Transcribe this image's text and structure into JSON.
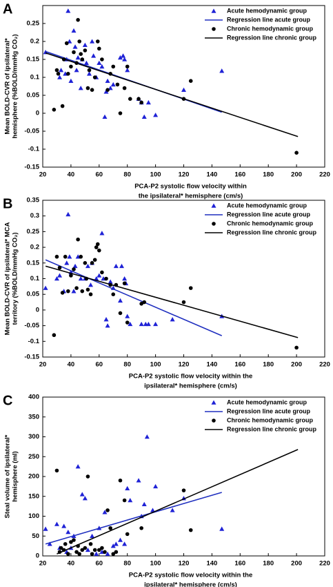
{
  "chart_data": [
    {
      "type": "scatter",
      "label": "A",
      "xlabel": [
        "PCA-P2 systolic  flow velocity within",
        "the ipsilateral*  hemisphere  (cm/s)"
      ],
      "ylabel": [
        "Mean BOLD-CVR of ipsilateral*",
        "hemisphere  (%BOLD/mmHg CO₂)"
      ],
      "xlim": [
        20,
        220
      ],
      "xticks": [
        20,
        40,
        60,
        80,
        100,
        120,
        140,
        160,
        180,
        200,
        220
      ],
      "ylim": [
        -0.15,
        0.3
      ],
      "yticks": [
        -0.15,
        -0.1,
        -0.05,
        0,
        0.05,
        0.1,
        0.15,
        0.2,
        0.25
      ],
      "legend": "upper right",
      "series": [
        {
          "name": "Acute hemodynamic group",
          "color": "#1f22d6",
          "marker": "triangle",
          "x": [
            22,
            32,
            33,
            36,
            37,
            38,
            39,
            40,
            42,
            43,
            44,
            45,
            47,
            48,
            50,
            51,
            53,
            55,
            56,
            58,
            60,
            62,
            64,
            65,
            66,
            68,
            70,
            75,
            77,
            78,
            80,
            88,
            90,
            92,
            95,
            100,
            120,
            147
          ],
          "values": [
            0.17,
            0.1,
            0.12,
            0.11,
            0.15,
            0.285,
            0.2,
            0.09,
            0.23,
            0.185,
            0.12,
            0.155,
            0.07,
            0.15,
            0.19,
            0.14,
            0.11,
            0.2,
            0.16,
            0.1,
            0.14,
            0.13,
            -0.01,
            0.06,
            0.09,
            0.07,
            0.08,
            0.155,
            0.16,
            0.15,
            0.12,
            0.04,
            0.03,
            -0.01,
            0.03,
            -0.005,
            0.065,
            0.118
          ]
        },
        {
          "name": "Regression line acute group",
          "color": "#1f2fbf",
          "type": "line",
          "x": [
            22,
            147
          ],
          "values": [
            0.172,
            0.003
          ]
        },
        {
          "name": "Chronic hemodynamic group",
          "color": "#000000",
          "marker": "circle",
          "x": [
            28,
            30,
            31,
            34,
            35,
            37,
            38,
            40,
            42,
            44,
            45,
            46,
            47,
            48,
            50,
            52,
            53,
            55,
            57,
            59,
            60,
            62,
            66,
            68,
            70,
            73,
            75,
            78,
            80,
            82,
            88,
            90,
            120,
            125,
            200
          ],
          "values": [
            0.01,
            0.12,
            0.11,
            0.02,
            0.15,
            0.195,
            0.11,
            0.13,
            0.17,
            0.14,
            0.26,
            0.2,
            0.165,
            0.15,
            0.175,
            0.07,
            0.12,
            0.065,
            0.1,
            0.2,
            0.18,
            0.15,
            0.065,
            0.11,
            0.13,
            0.08,
            0.0,
            0.07,
            0.13,
            0.04,
            0.04,
            0.03,
            0.04,
            0.09,
            -0.11
          ]
        },
        {
          "name": "Regression line chronic group",
          "color": "#000000",
          "type": "line",
          "x": [
            22,
            201
          ],
          "values": [
            0.168,
            -0.065
          ]
        }
      ]
    },
    {
      "type": "scatter",
      "label": "B",
      "xlabel": [
        "PCA-P2 systolic  flow velocity within the",
        "ipsilateral*  hemisphere  (cm/s)"
      ],
      "ylabel": [
        "Mean BOLD-CVR of ipsilateral*  MCA",
        "territory  (%BOLD/mmHg CO₂)"
      ],
      "xlim": [
        20,
        220
      ],
      "xticks": [
        20,
        40,
        60,
        80,
        100,
        120,
        140,
        160,
        180,
        200,
        220
      ],
      "ylim": [
        -0.15,
        0.35
      ],
      "yticks": [
        -0.15,
        -0.1,
        -0.05,
        0,
        0.05,
        0.1,
        0.15,
        0.2,
        0.25,
        0.3,
        0.35
      ],
      "legend": "upper right",
      "series": [
        {
          "name": "Acute hemodynamic group",
          "color": "#1f22d6",
          "marker": "triangle",
          "x": [
            22,
            30,
            32,
            35,
            37,
            38,
            39,
            40,
            42,
            43,
            45,
            47,
            50,
            52,
            54,
            55,
            58,
            60,
            62,
            63,
            65,
            66,
            68,
            70,
            72,
            75,
            76,
            78,
            79,
            80,
            82,
            90,
            93,
            95,
            100,
            112,
            147
          ],
          "values": [
            0.07,
            0.1,
            0.11,
            0.06,
            0.15,
            0.305,
            0.17,
            0.12,
            0.06,
            0.14,
            0.17,
            0.1,
            0.1,
            0.14,
            0.08,
            0.15,
            0.1,
            0.11,
            0.245,
            0.1,
            -0.03,
            -0.05,
            0.09,
            0.07,
            0.14,
            0.03,
            0.14,
            0.1,
            0.085,
            -0.02,
            -0.045,
            -0.045,
            -0.045,
            -0.045,
            -0.045,
            -0.03,
            -0.02
          ]
        },
        {
          "name": "Regression line acute group",
          "color": "#1f2fbf",
          "type": "line",
          "x": [
            22,
            147
          ],
          "values": [
            0.16,
            -0.082
          ]
        },
        {
          "name": "Chronic hemodynamic group",
          "color": "#000000",
          "marker": "circle",
          "x": [
            28,
            30,
            32,
            34,
            36,
            38,
            40,
            42,
            44,
            45,
            47,
            48,
            50,
            51,
            52,
            54,
            55,
            57,
            58,
            59,
            60,
            62,
            65,
            68,
            70,
            72,
            75,
            78,
            80,
            90,
            92,
            120,
            125,
            200
          ],
          "values": [
            -0.08,
            0.17,
            0.135,
            0.055,
            0.17,
            0.06,
            0.11,
            0.13,
            0.07,
            0.225,
            0.17,
            0.06,
            0.15,
            0.1,
            0.065,
            0.05,
            0.15,
            0.16,
            0.2,
            0.21,
            0.19,
            0.12,
            0.1,
            0.08,
            0.05,
            0.08,
            -0.01,
            0.085,
            -0.04,
            0.02,
            0.025,
            0.025,
            0.07,
            -0.12
          ]
        },
        {
          "name": "Regression line chronic group",
          "color": "#000000",
          "type": "line",
          "x": [
            22,
            201
          ],
          "values": [
            0.14,
            -0.088
          ]
        }
      ]
    },
    {
      "type": "scatter",
      "label": "C",
      "xlabel": [
        "PCA-P2 systolic  flow velocity within the",
        "ipsilateral*  hemisphere  (cm/s)"
      ],
      "ylabel": [
        "Steal volume of ipsilateral*",
        "hemisphere  (ml)"
      ],
      "xlim": [
        20,
        220
      ],
      "xticks": [
        20,
        40,
        60,
        80,
        100,
        120,
        140,
        160,
        180,
        200,
        220
      ],
      "ylim": [
        0,
        400
      ],
      "yticks": [
        0,
        50,
        100,
        150,
        200,
        250,
        300,
        350,
        400
      ],
      "legend": "upper right",
      "series": [
        {
          "name": "Acute hemodynamic group",
          "color": "#1f22d6",
          "marker": "triangle",
          "x": [
            22,
            25,
            30,
            32,
            35,
            37,
            38,
            40,
            42,
            45,
            48,
            50,
            52,
            55,
            58,
            60,
            62,
            64,
            66,
            70,
            72,
            75,
            78,
            80,
            82,
            88,
            90,
            92,
            94,
            98,
            100,
            112,
            120,
            147
          ],
          "values": [
            68,
            30,
            80,
            20,
            75,
            10,
            60,
            20,
            50,
            225,
            155,
            145,
            15,
            50,
            5,
            70,
            10,
            110,
            5,
            25,
            30,
            40,
            30,
            170,
            140,
            190,
            100,
            130,
            300,
            115,
            175,
            115,
            145,
            68
          ]
        },
        {
          "name": "Regression line acute group",
          "color": "#1f2fbf",
          "type": "line",
          "x": [
            22,
            147
          ],
          "values": [
            30,
            160
          ]
        },
        {
          "name": "Chronic hemodynamic group",
          "color": "#000000",
          "marker": "circle",
          "x": [
            30,
            32,
            33,
            35,
            36,
            38,
            40,
            42,
            44,
            45,
            46,
            48,
            50,
            52,
            54,
            55,
            57,
            60,
            62,
            64,
            66,
            68,
            70,
            72,
            75,
            78,
            80,
            90,
            120,
            125
          ],
          "values": [
            215,
            10,
            20,
            15,
            30,
            5,
            35,
            40,
            10,
            25,
            5,
            15,
            20,
            200,
            30,
            5,
            15,
            15,
            20,
            10,
            115,
            70,
            5,
            10,
            190,
            140,
            55,
            70,
            165,
            65
          ]
        },
        {
          "name": "Regression line chronic group",
          "color": "#000000",
          "type": "line",
          "x": [
            30,
            201
          ],
          "values": [
            5,
            268
          ]
        }
      ]
    }
  ]
}
